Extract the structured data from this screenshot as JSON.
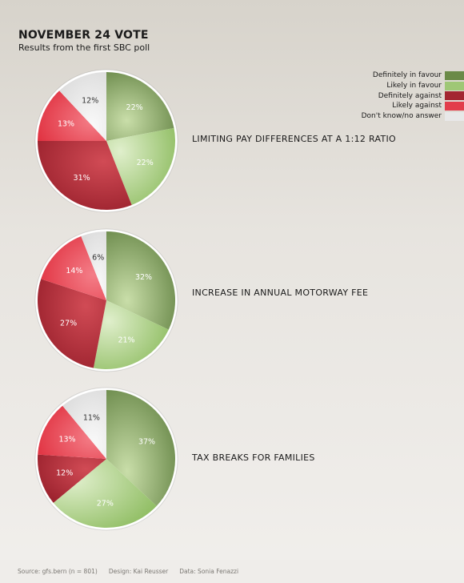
{
  "header": {
    "title": "NOVEMBER 24 VOTE",
    "subtitle": "Results from the first SBC poll"
  },
  "legend": [
    {
      "label": "Definitely in favour",
      "color": "#6b8a48"
    },
    {
      "label": "Likely in favour",
      "color": "#9fc776"
    },
    {
      "label": "Definitely against",
      "color": "#a32631"
    },
    {
      "label": "Likely against",
      "color": "#e23d4b"
    },
    {
      "label": "Don't know/no answer",
      "color": "#e8e8e8"
    }
  ],
  "chart_data": [
    {
      "type": "pie",
      "title": "LIMITING PAY DIFFERENCES AT A 1:12 RATIO",
      "categories": [
        "Definitely in favour",
        "Likely in favour",
        "Definitely against",
        "Likely against",
        "Don't know/no answer"
      ],
      "values": [
        22,
        22,
        31,
        13,
        12
      ],
      "labels": [
        "22%",
        "22%",
        "31%",
        "13%",
        "12%"
      ]
    },
    {
      "type": "pie",
      "title": "INCREASE IN ANNUAL MOTORWAY FEE",
      "categories": [
        "Definitely in favour",
        "Likely in favour",
        "Definitely against",
        "Likely against",
        "Don't know/no answer"
      ],
      "values": [
        32,
        21,
        27,
        14,
        6
      ],
      "labels": [
        "32%",
        "21%",
        "27%",
        "14%",
        "6%"
      ]
    },
    {
      "type": "pie",
      "title": "TAX BREAKS FOR FAMILIES",
      "categories": [
        "Definitely in favour",
        "Likely in favour",
        "Definitely against",
        "Likely against",
        "Don't know/no answer"
      ],
      "values": [
        37,
        27,
        12,
        13,
        11
      ],
      "labels": [
        "37%",
        "27%",
        "12%",
        "13%",
        "11%"
      ]
    }
  ],
  "footer": {
    "source": "Source: gfs.bern (n = 801)",
    "design": "Design: Kai Reusser",
    "data": "Data: Sonia Fenazzi"
  }
}
